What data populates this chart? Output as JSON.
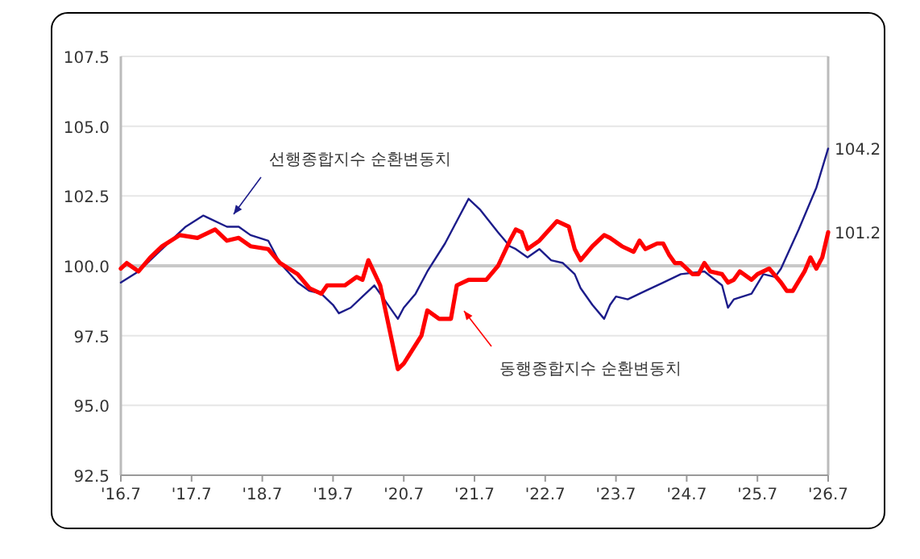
{
  "chart_data": {
    "type": "line",
    "grid": "y",
    "xlim": [
      "2016-07",
      "2026-07"
    ],
    "xticks": [
      {
        "value": "2016-07",
        "label": "'16.7"
      },
      {
        "value": "2017-07",
        "label": "'17.7"
      },
      {
        "value": "2018-07",
        "label": "'18.7"
      },
      {
        "value": "2019-07",
        "label": "'19.7"
      },
      {
        "value": "2020-07",
        "label": "'20.7"
      },
      {
        "value": "2021-07",
        "label": "'21.7"
      },
      {
        "value": "2022-07",
        "label": "'22.7"
      },
      {
        "value": "2023-07",
        "label": "'23.7"
      },
      {
        "value": "2024-07",
        "label": "'24.7"
      },
      {
        "value": "2025-07",
        "label": "'25.7"
      },
      {
        "value": "2026-07",
        "label": "'26.7"
      }
    ],
    "ylim": [
      92.5,
      107.5
    ],
    "yticks": [
      92.5,
      {
        "value": 95,
        "label": "95.0"
      },
      97.5,
      {
        "value": 100,
        "label": "100.0"
      },
      102.5,
      {
        "value": 105,
        "label": "105.0"
      },
      107.5
    ],
    "ref_lines": [
      {
        "axis": "y",
        "value": 100,
        "label": null,
        "color": "#c8c8c8"
      }
    ],
    "annotations": [
      "선행종합지수 순환변동치",
      "동행종합지수 순환변동치",
      {
        "text": "104.2",
        "x": "2026-07",
        "y": 104.2
      },
      {
        "text": "101.2",
        "x": "2026-07",
        "y": 101.2
      }
    ],
    "series": [
      {
        "color": "#1c1c8a",
        "x": [
          "2016-07",
          "2016-10",
          "2017-02",
          "2017-06",
          "2017-09",
          "2017-10",
          "2018-01",
          "2018-03",
          "2018-05",
          "2018-08",
          "2018-10",
          "2019-01",
          "2019-03",
          "2019-05",
          "2019-07",
          "2019-08",
          "2019-10",
          "2019-12",
          "2020-02",
          "2020-03",
          "2020-06",
          "2020-07",
          "2020-09",
          "2020-11",
          "2021-02",
          "2021-04",
          "2021-06",
          "2021-08",
          "2021-11",
          "2022-01",
          "2022-02",
          "2022-04",
          "2022-06",
          "2022-08",
          "2022-10",
          "2022-12",
          "2023-01",
          "2023-03",
          "2023-05",
          "2023-06",
          "2023-07",
          "2023-09",
          "2023-12",
          "2024-03",
          "2024-06",
          "2024-10",
          "2025-01",
          "2025-02",
          "2025-03",
          "2025-06",
          "2025-08",
          "2025-10",
          "2025-11",
          "2026-02",
          "2026-05",
          "2026-07"
        ],
        "values": [
          99.4,
          99.8,
          100.6,
          101.4,
          101.8,
          101.7,
          101.4,
          101.4,
          101.1,
          100.9,
          100.1,
          99.4,
          99.1,
          99.0,
          98.6,
          98.3,
          98.5,
          98.9,
          99.3,
          99.0,
          98.1,
          98.5,
          99.0,
          99.8,
          100.8,
          101.6,
          102.4,
          102.0,
          101.2,
          100.7,
          100.6,
          100.3,
          100.6,
          100.2,
          100.1,
          99.7,
          99.2,
          98.6,
          98.1,
          98.6,
          98.9,
          98.8,
          99.1,
          99.4,
          99.7,
          99.8,
          99.3,
          98.5,
          98.8,
          99.0,
          99.7,
          99.6,
          99.9,
          101.3,
          102.8,
          104.2
        ]
      },
      {
        "color": "#ff0000",
        "x": [
          "2016-07",
          "2016-08",
          "2016-10",
          "2016-12",
          "2017-02",
          "2017-05",
          "2017-08",
          "2017-10",
          "2017-11",
          "2018-01",
          "2018-03",
          "2018-05",
          "2018-08",
          "2018-10",
          "2019-01",
          "2019-03",
          "2019-05",
          "2019-06",
          "2019-09",
          "2019-11",
          "2019-12",
          "2020-01",
          "2020-03",
          "2020-06",
          "2020-07",
          "2020-10",
          "2020-11",
          "2021-01",
          "2021-03",
          "2021-04",
          "2021-06",
          "2021-09",
          "2021-11",
          "2022-01",
          "2022-02",
          "2022-03",
          "2022-04",
          "2022-06",
          "2022-09",
          "2022-11",
          "2022-12",
          "2023-01",
          "2023-03",
          "2023-05",
          "2023-06",
          "2023-08",
          "2023-10",
          "2023-11",
          "2023-12",
          "2024-02",
          "2024-03",
          "2024-04",
          "2024-05",
          "2024-06",
          "2024-08",
          "2024-09",
          "2024-10",
          "2024-11",
          "2025-01",
          "2025-02",
          "2025-03",
          "2025-04",
          "2025-06",
          "2025-07",
          "2025-09",
          "2025-11",
          "2025-12",
          "2026-01",
          "2026-03",
          "2026-04",
          "2026-05",
          "2026-06",
          "2026-07"
        ],
        "values": [
          99.9,
          100.1,
          99.8,
          100.3,
          100.7,
          101.1,
          101.0,
          101.2,
          101.3,
          100.9,
          101.0,
          100.7,
          100.6,
          100.1,
          99.7,
          99.2,
          99.0,
          99.3,
          99.3,
          99.6,
          99.5,
          100.2,
          99.3,
          96.3,
          96.5,
          97.5,
          98.4,
          98.1,
          98.1,
          99.3,
          99.5,
          99.5,
          100.0,
          100.9,
          101.3,
          101.2,
          100.6,
          100.9,
          101.6,
          101.4,
          100.6,
          100.2,
          100.7,
          101.1,
          101.0,
          100.7,
          100.5,
          100.9,
          100.6,
          100.8,
          100.8,
          100.4,
          100.1,
          100.1,
          99.7,
          99.7,
          100.1,
          99.8,
          99.7,
          99.4,
          99.5,
          99.8,
          99.5,
          99.7,
          99.9,
          99.4,
          99.1,
          99.1,
          99.8,
          100.3,
          99.9,
          100.3,
          101.2
        ]
      }
    ]
  }
}
